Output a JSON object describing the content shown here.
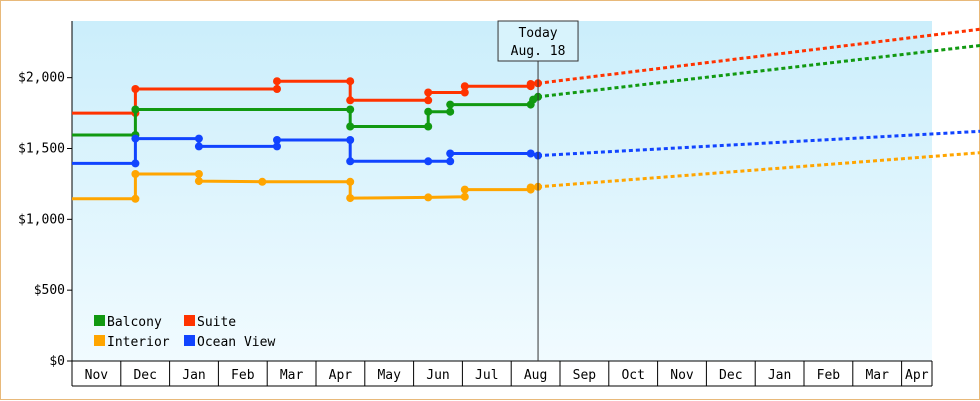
{
  "chart_data": {
    "type": "line",
    "title": "",
    "xlabel": "",
    "ylabel": "",
    "ylim": [
      0,
      2400
    ],
    "yticks": [
      {
        "value": 0,
        "label": "$0"
      },
      {
        "value": 500,
        "label": "$500"
      },
      {
        "value": 1000,
        "label": "$1,000"
      },
      {
        "value": 1500,
        "label": "$1,500"
      },
      {
        "value": 2000,
        "label": "$2,000"
      }
    ],
    "x_axis_months": [
      "Nov",
      "Dec",
      "Jan",
      "Feb",
      "Mar",
      "Apr",
      "May",
      "Jun",
      "Jul",
      "Aug",
      "Sep",
      "Oct",
      "Nov",
      "Dec",
      "Jan",
      "Feb",
      "Mar",
      "Apr"
    ],
    "today_marker": {
      "line1": "Today",
      "line2": "Aug. 18",
      "month_index": 9.55
    },
    "legend": [
      {
        "name": "Balcony",
        "color": "#119911"
      },
      {
        "name": "Suite",
        "color": "#ff3300"
      },
      {
        "name": "Interior",
        "color": "#ffa500"
      },
      {
        "name": "Ocean View",
        "color": "#1144ff"
      }
    ],
    "series": [
      {
        "name": "Suite",
        "color": "#ff3300",
        "points": [
          [
            0,
            1750
          ],
          [
            1.3,
            1750
          ],
          [
            1.3,
            1920
          ],
          [
            4.2,
            1920
          ],
          [
            4.2,
            1975
          ],
          [
            5.7,
            1975
          ],
          [
            5.7,
            1840
          ],
          [
            7.3,
            1840
          ],
          [
            7.3,
            1895
          ],
          [
            8.05,
            1895
          ],
          [
            8.05,
            1940
          ],
          [
            9.4,
            1940
          ],
          [
            9.4,
            1955
          ],
          [
            9.55,
            1960
          ]
        ],
        "markers": [
          [
            1.3,
            1750
          ],
          [
            1.3,
            1920
          ],
          [
            4.2,
            1920
          ],
          [
            4.2,
            1975
          ],
          [
            5.7,
            1975
          ],
          [
            5.7,
            1840
          ],
          [
            7.3,
            1840
          ],
          [
            7.3,
            1895
          ],
          [
            8.05,
            1895
          ],
          [
            8.05,
            1940
          ],
          [
            9.4,
            1940
          ],
          [
            9.4,
            1955
          ],
          [
            9.55,
            1960
          ]
        ],
        "projection": [
          [
            9.55,
            1960
          ],
          [
            18.8,
            2350
          ]
        ]
      },
      {
        "name": "Balcony",
        "color": "#119911",
        "points": [
          [
            0,
            1595
          ],
          [
            1.3,
            1595
          ],
          [
            1.3,
            1775
          ],
          [
            5.7,
            1775
          ],
          [
            5.7,
            1655
          ],
          [
            7.3,
            1655
          ],
          [
            7.3,
            1760
          ],
          [
            7.75,
            1760
          ],
          [
            7.75,
            1810
          ],
          [
            9.4,
            1810
          ],
          [
            9.4,
            1840
          ],
          [
            9.5,
            1860
          ],
          [
            9.55,
            1865
          ]
        ],
        "markers": [
          [
            1.3,
            1595
          ],
          [
            1.3,
            1775
          ],
          [
            5.7,
            1775
          ],
          [
            5.7,
            1655
          ],
          [
            7.3,
            1655
          ],
          [
            7.3,
            1760
          ],
          [
            7.75,
            1760
          ],
          [
            7.75,
            1810
          ],
          [
            9.4,
            1810
          ],
          [
            9.45,
            1845
          ],
          [
            9.55,
            1865
          ]
        ],
        "projection": [
          [
            9.55,
            1865
          ],
          [
            18.8,
            2235
          ]
        ]
      },
      {
        "name": "Ocean View",
        "color": "#1144ff",
        "points": [
          [
            0,
            1395
          ],
          [
            1.3,
            1395
          ],
          [
            1.3,
            1570
          ],
          [
            2.6,
            1570
          ],
          [
            2.6,
            1515
          ],
          [
            4.2,
            1515
          ],
          [
            4.2,
            1560
          ],
          [
            5.7,
            1560
          ],
          [
            5.7,
            1410
          ],
          [
            7.3,
            1410
          ],
          [
            7.75,
            1410
          ],
          [
            7.75,
            1465
          ],
          [
            9.4,
            1465
          ],
          [
            9.55,
            1450
          ]
        ],
        "markers": [
          [
            1.3,
            1395
          ],
          [
            1.3,
            1570
          ],
          [
            2.6,
            1570
          ],
          [
            2.6,
            1515
          ],
          [
            4.2,
            1515
          ],
          [
            4.2,
            1560
          ],
          [
            5.7,
            1560
          ],
          [
            5.7,
            1410
          ],
          [
            7.3,
            1410
          ],
          [
            7.75,
            1410
          ],
          [
            7.75,
            1465
          ],
          [
            9.4,
            1465
          ],
          [
            9.55,
            1450
          ]
        ],
        "projection": [
          [
            9.55,
            1450
          ],
          [
            18.8,
            1625
          ]
        ]
      },
      {
        "name": "Interior",
        "color": "#ffa500",
        "points": [
          [
            0,
            1145
          ],
          [
            1.3,
            1145
          ],
          [
            1.3,
            1320
          ],
          [
            2.6,
            1320
          ],
          [
            2.6,
            1270
          ],
          [
            4,
            1265
          ],
          [
            5.7,
            1265
          ],
          [
            5.7,
            1150
          ],
          [
            7.3,
            1155
          ],
          [
            8.05,
            1160
          ],
          [
            8.05,
            1210
          ],
          [
            9.4,
            1210
          ],
          [
            9.4,
            1225
          ],
          [
            9.55,
            1230
          ]
        ],
        "markers": [
          [
            1.3,
            1145
          ],
          [
            1.3,
            1320
          ],
          [
            2.6,
            1320
          ],
          [
            2.6,
            1270
          ],
          [
            3.9,
            1265
          ],
          [
            5.7,
            1265
          ],
          [
            5.7,
            1150
          ],
          [
            7.3,
            1155
          ],
          [
            8.05,
            1160
          ],
          [
            8.05,
            1210
          ],
          [
            9.4,
            1210
          ],
          [
            9.4,
            1225
          ],
          [
            9.55,
            1230
          ]
        ],
        "projection": [
          [
            9.55,
            1230
          ],
          [
            18.8,
            1475
          ]
        ]
      }
    ]
  }
}
